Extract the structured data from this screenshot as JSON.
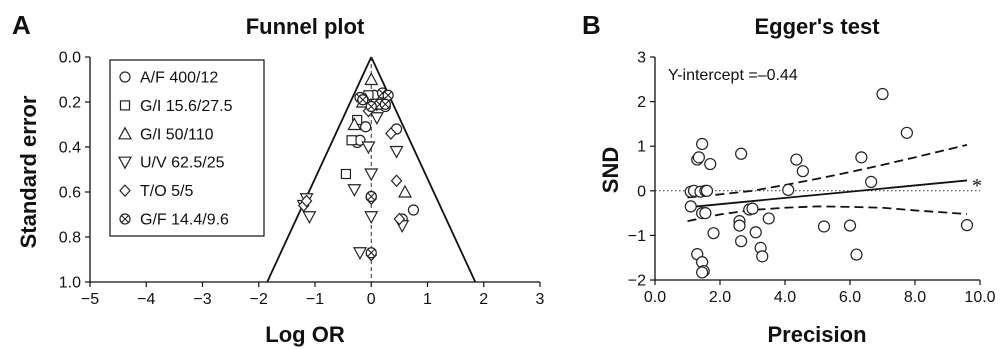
{
  "chart_data": [
    {
      "type": "scatter",
      "panel_label": "A",
      "title": "Funnel plot",
      "xlabel": "Log OR",
      "ylabel": "Standard error",
      "xlim": [
        -5,
        3
      ],
      "ylim": [
        0.0,
        1.0
      ],
      "y_inverted": true,
      "xticks": [
        "−5",
        "−4",
        "−3",
        "−2",
        "−1",
        "0",
        "1",
        "2",
        "3"
      ],
      "yticks": [
        "0.0",
        "0.2",
        "0.4",
        "0.6",
        "0.8",
        "1.0"
      ],
      "funnel": {
        "apex": [
          0,
          0
        ],
        "base_left": [
          -1.85,
          1.0
        ],
        "base_right": [
          1.85,
          1.0
        ]
      },
      "reference_line_x": 0,
      "legend": {
        "placement": "top-left"
      },
      "series": [
        {
          "name": "A/F 400/12",
          "marker": "circle",
          "points": [
            [
              0.05,
              0.17
            ],
            [
              -0.25,
              0.38
            ],
            [
              -0.2,
              0.37
            ],
            [
              -0.1,
              0.31
            ],
            [
              0.45,
              0.32
            ],
            [
              0.0,
              0.62
            ],
            [
              0.75,
              0.68
            ],
            [
              0.25,
              0.22
            ],
            [
              0.55,
              0.72
            ]
          ]
        },
        {
          "name": "G/I 15.6/27.5",
          "marker": "square",
          "points": [
            [
              -0.35,
              0.37
            ],
            [
              -0.45,
              0.52
            ],
            [
              -0.25,
              0.28
            ],
            [
              -0.05,
              0.17
            ]
          ]
        },
        {
          "name": "G/I 50/110",
          "marker": "triangle-up",
          "points": [
            [
              0.0,
              0.1
            ],
            [
              -0.1,
              0.19
            ],
            [
              0.6,
              0.6
            ],
            [
              -0.3,
              0.3
            ],
            [
              -0.15,
              0.2
            ]
          ]
        },
        {
          "name": "U/V 62.5/25",
          "marker": "triangle-down",
          "points": [
            [
              0.1,
              0.21
            ],
            [
              -0.05,
              0.4
            ],
            [
              0.45,
              0.42
            ],
            [
              -0.3,
              0.59
            ],
            [
              0.0,
              0.52
            ],
            [
              0.0,
              0.71
            ],
            [
              -1.15,
              0.63
            ],
            [
              -1.2,
              0.66
            ],
            [
              -1.1,
              0.71
            ],
            [
              -0.2,
              0.87
            ],
            [
              0.55,
              0.75
            ],
            [
              0.1,
              0.27
            ]
          ]
        },
        {
          "name": "T/O 5/5",
          "marker": "diamond",
          "points": [
            [
              -0.05,
              0.24
            ],
            [
              0.45,
              0.55
            ],
            [
              0.0,
              0.63
            ],
            [
              -1.2,
              0.66
            ],
            [
              -1.15,
              0.64
            ],
            [
              0.5,
              0.72
            ],
            [
              0.0,
              0.88
            ],
            [
              0.35,
              0.34
            ]
          ]
        },
        {
          "name": "G/F 14.4/9.6",
          "marker": "circle-x",
          "points": [
            [
              0.0,
              0.62
            ],
            [
              0.0,
              0.87
            ],
            [
              -0.2,
              0.18
            ],
            [
              -0.15,
              0.19
            ],
            [
              0.2,
              0.16
            ],
            [
              0.3,
              0.17
            ],
            [
              0.15,
              0.21
            ],
            [
              0.25,
              0.21
            ],
            [
              0.0,
              0.22
            ]
          ]
        }
      ]
    },
    {
      "type": "scatter",
      "panel_label": "B",
      "title": "Egger's test",
      "xlabel": "Precision",
      "ylabel": "SND",
      "xlim": [
        0,
        10
      ],
      "ylim": [
        -2,
        3
      ],
      "xticks": [
        "0.0",
        "2.0",
        "4.0",
        "6.0",
        "8.0",
        "10.0"
      ],
      "yticks": [
        "−2",
        "−1",
        "0",
        "1",
        "2",
        "3"
      ],
      "annotation": "Y-intercept =–0.44",
      "star_marker": "*",
      "regression": {
        "intercept": -0.44,
        "slope": 0.07,
        "x_range": [
          1.0,
          9.6
        ]
      },
      "confidence_band": {
        "x": [
          1.0,
          2.0,
          3.0,
          4.0,
          5.0,
          6.0,
          7.0,
          8.0,
          9.6
        ],
        "upper": [
          -0.15,
          -0.08,
          0.0,
          0.13,
          0.27,
          0.42,
          0.58,
          0.75,
          1.03
        ],
        "lower": [
          -0.68,
          -0.53,
          -0.43,
          -0.38,
          -0.35,
          -0.36,
          -0.38,
          -0.44,
          -0.52
        ]
      },
      "reference_line_y": 0,
      "points": [
        [
          1.1,
          -0.02
        ],
        [
          1.2,
          0.0
        ],
        [
          1.4,
          -0.02
        ],
        [
          1.55,
          0.0
        ],
        [
          1.6,
          0.0
        ],
        [
          1.1,
          -0.35
        ],
        [
          1.3,
          0.7
        ],
        [
          1.35,
          0.75
        ],
        [
          1.45,
          1.05
        ],
        [
          1.7,
          0.6
        ],
        [
          1.45,
          -0.5
        ],
        [
          1.55,
          -0.5
        ],
        [
          1.3,
          -1.42
        ],
        [
          1.45,
          -1.6
        ],
        [
          1.5,
          -1.8
        ],
        [
          1.45,
          -1.83
        ],
        [
          1.8,
          -0.95
        ],
        [
          2.65,
          0.83
        ],
        [
          2.6,
          -0.68
        ],
        [
          2.6,
          -0.78
        ],
        [
          2.65,
          -1.13
        ],
        [
          2.9,
          -0.42
        ],
        [
          3.0,
          -0.4
        ],
        [
          3.1,
          -0.93
        ],
        [
          3.25,
          -1.28
        ],
        [
          3.3,
          -1.47
        ],
        [
          3.5,
          -0.62
        ],
        [
          4.1,
          0.02
        ],
        [
          4.35,
          0.7
        ],
        [
          4.55,
          0.44
        ],
        [
          5.2,
          -0.8
        ],
        [
          6.0,
          -0.78
        ],
        [
          6.2,
          -1.43
        ],
        [
          6.35,
          0.75
        ],
        [
          6.65,
          0.2
        ],
        [
          7.0,
          2.17
        ],
        [
          7.75,
          1.3
        ],
        [
          9.6,
          -0.77
        ]
      ]
    }
  ]
}
